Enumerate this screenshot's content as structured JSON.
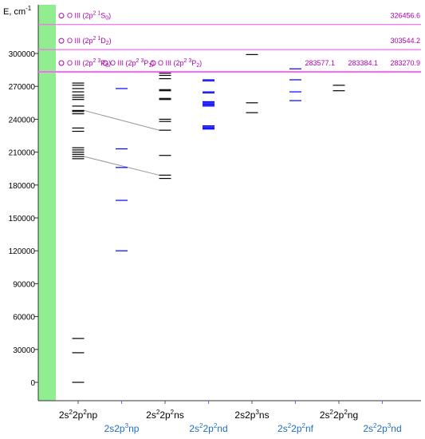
{
  "chart_data": {
    "type": "energy-level-diagram",
    "ylabel": "E, cm",
    "ylabel_sup": "-1",
    "ylim": [
      0,
      327500
    ],
    "ticks": [
      0,
      30000,
      60000,
      90000,
      120000,
      150000,
      180000,
      210000,
      240000,
      270000,
      300000
    ],
    "ionization_limits": [
      {
        "text": "O III (2p",
        "sup": "2 1",
        "base": "S",
        "sub": "0",
        "suffix": ")",
        "value": 326456.6,
        "value_label": "326456.6"
      },
      {
        "text": "O III (2p",
        "sup": "2 1",
        "base": "D",
        "sub": "2",
        "suffix": ")",
        "value": 303544.2,
        "value_label": "303544.2"
      },
      {
        "text": "O III (2p",
        "sup": "2 3",
        "base": "P",
        "sub": "0",
        "suffix": ")",
        "value": 283270.9,
        "value_label": "283270.9"
      }
    ],
    "sublimit_labels": [
      {
        "text": "O III (2p",
        "sup": "2 3",
        "base": "P",
        "sub": "1",
        "suffix": ")",
        "value_label": "283384.1"
      },
      {
        "text": "O III (2p",
        "sup": "2 3",
        "base": "P",
        "sub": "2",
        "suffix": ")",
        "value_label": "283577.1"
      }
    ],
    "configurations": [
      {
        "base": "2s",
        "sup1": "2",
        "mid": "2p",
        "sup2": "2",
        "suffix": "np",
        "color": "#000000",
        "row": "top",
        "levels": [
          0,
          27000,
          40000,
          204000,
          206000,
          208000,
          210000,
          212000,
          214000,
          229000,
          232000,
          245000,
          247000,
          248000,
          252000,
          258000,
          260000,
          262000,
          265000,
          268000,
          271000,
          273000
        ]
      },
      {
        "base": "2s",
        "sup1": "",
        "mid": "2p",
        "sup2": "3",
        "suffix": "np",
        "color": "#0000ff",
        "row": "bottom",
        "levels": [
          120000,
          166000,
          196000,
          213000,
          268000
        ]
      },
      {
        "base": "2s",
        "sup1": "2",
        "mid": "2p",
        "sup2": "2",
        "suffix": "ns",
        "color": "#000000",
        "row": "top",
        "levels": [
          186000,
          189000,
          207000,
          230000,
          238000,
          240000,
          258000,
          259000,
          266000,
          267000,
          277000,
          280000,
          282000
        ]
      },
      {
        "base": "2s",
        "sup1": "2",
        "mid": "2p",
        "sup2": "2",
        "suffix": "nd",
        "color": "#0000ff",
        "row": "bottom",
        "levels": [
          231000,
          232000,
          233000,
          234000,
          252000,
          253000,
          254000,
          255000,
          256000,
          264000,
          265000,
          275000,
          276000
        ]
      },
      {
        "base": "2s",
        "sup1": "",
        "mid": "2p",
        "sup2": "3",
        "suffix": "ns",
        "color": "#000000",
        "row": "top",
        "levels": [
          246000,
          255000,
          299000
        ]
      },
      {
        "base": "2s",
        "sup1": "2",
        "mid": "2p",
        "sup2": "2",
        "suffix": "nf",
        "color": "#0000ff",
        "row": "bottom",
        "levels": [
          257000,
          265000,
          276000,
          286000
        ]
      },
      {
        "base": "2s",
        "sup1": "2",
        "mid": "2p",
        "sup2": "2",
        "suffix": "ng",
        "color": "#000000",
        "row": "top",
        "levels": [
          266000,
          271000
        ]
      },
      {
        "base": "2s",
        "sup1": "2",
        "mid": "2p",
        "sup2": "3",
        "suffix": "nd",
        "color": "#0000ff",
        "row": "bottom",
        "levels": []
      }
    ],
    "connectors": [
      {
        "from_col": 0,
        "from": 248000,
        "to_col": 2,
        "to": 230000
      },
      {
        "from_col": 0,
        "from": 206000,
        "to_col": 2,
        "to": 189000
      }
    ],
    "colors": {
      "band": "#90ee90",
      "limit_line": "#ff66ff",
      "limit_text": "#b000b0",
      "black_label": "#000000",
      "blue_label": "#1f6fc0",
      "axis": "#333333",
      "connector": "#999999"
    }
  }
}
